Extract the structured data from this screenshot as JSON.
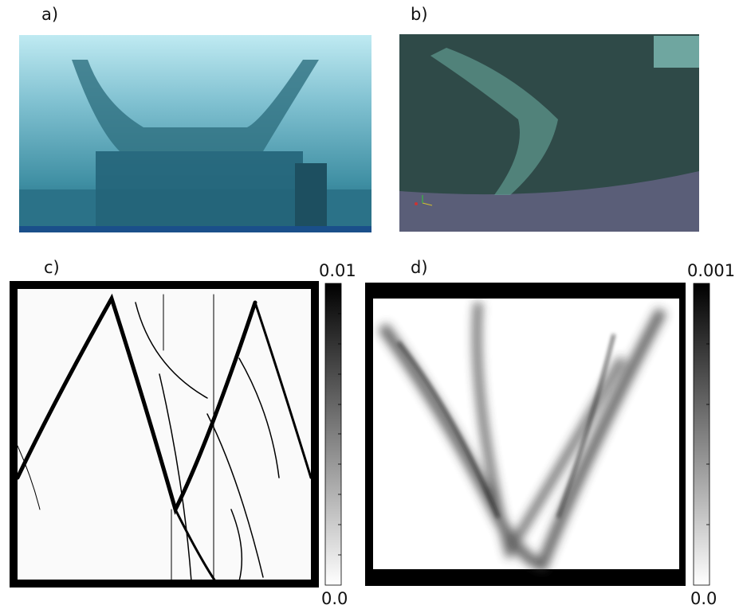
{
  "panels": [
    {
      "label": "a)"
    },
    {
      "label": "b)"
    },
    {
      "label": "c)",
      "colorbar": {
        "max": "0.01",
        "min": "0.0"
      }
    },
    {
      "label": "d)",
      "colorbar": {
        "max": "0.001",
        "min": "0.0"
      }
    }
  ]
}
